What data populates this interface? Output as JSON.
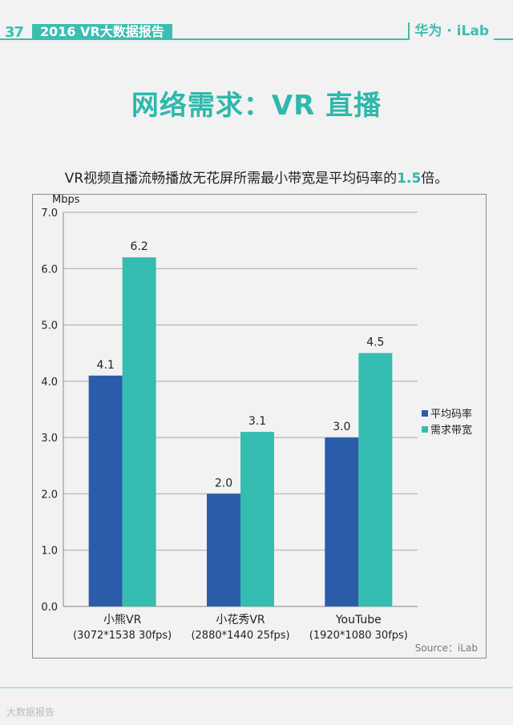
{
  "header": {
    "page_number": "37",
    "report_title": "2016 VR大数据报告",
    "brand": "华为 · iLab"
  },
  "page_title": "网络需求：VR 直播",
  "subtitle": {
    "before": "VR视频直播流畅播放无花屏所需最小带宽是平均码率的",
    "highlight": "1.5",
    "after": "倍。"
  },
  "watermark": "大数据报告",
  "colors": {
    "accent": "#2fb8ac",
    "avg_bitrate": "#2a5caa",
    "required_bandwidth": "#35bdb2"
  },
  "chart_data": {
    "type": "bar",
    "unit_label": "Mbps",
    "categories": [
      [
        "小熊VR",
        "(3072*1538 30fps)"
      ],
      [
        "小花秀VR",
        "(2880*1440 25fps)"
      ],
      [
        "YouTube",
        "(1920*1080 30fps)"
      ]
    ],
    "series": [
      {
        "name": "平均码率",
        "values": [
          4.1,
          2.0,
          3.0
        ],
        "labels": [
          "4.1",
          "2.0",
          "3.0"
        ],
        "color": "#2a5caa"
      },
      {
        "name": "需求带宽",
        "values": [
          6.2,
          3.1,
          4.5
        ],
        "labels": [
          "6.2",
          "3.1",
          "4.5"
        ],
        "color": "#35bdb2"
      }
    ],
    "ylim": [
      0,
      7
    ],
    "yticks": [
      "0.0",
      "1.0",
      "2.0",
      "3.0",
      "4.0",
      "5.0",
      "6.0",
      "7.0"
    ],
    "grid": true,
    "legend_position": "right",
    "source": "Source：iLab"
  }
}
